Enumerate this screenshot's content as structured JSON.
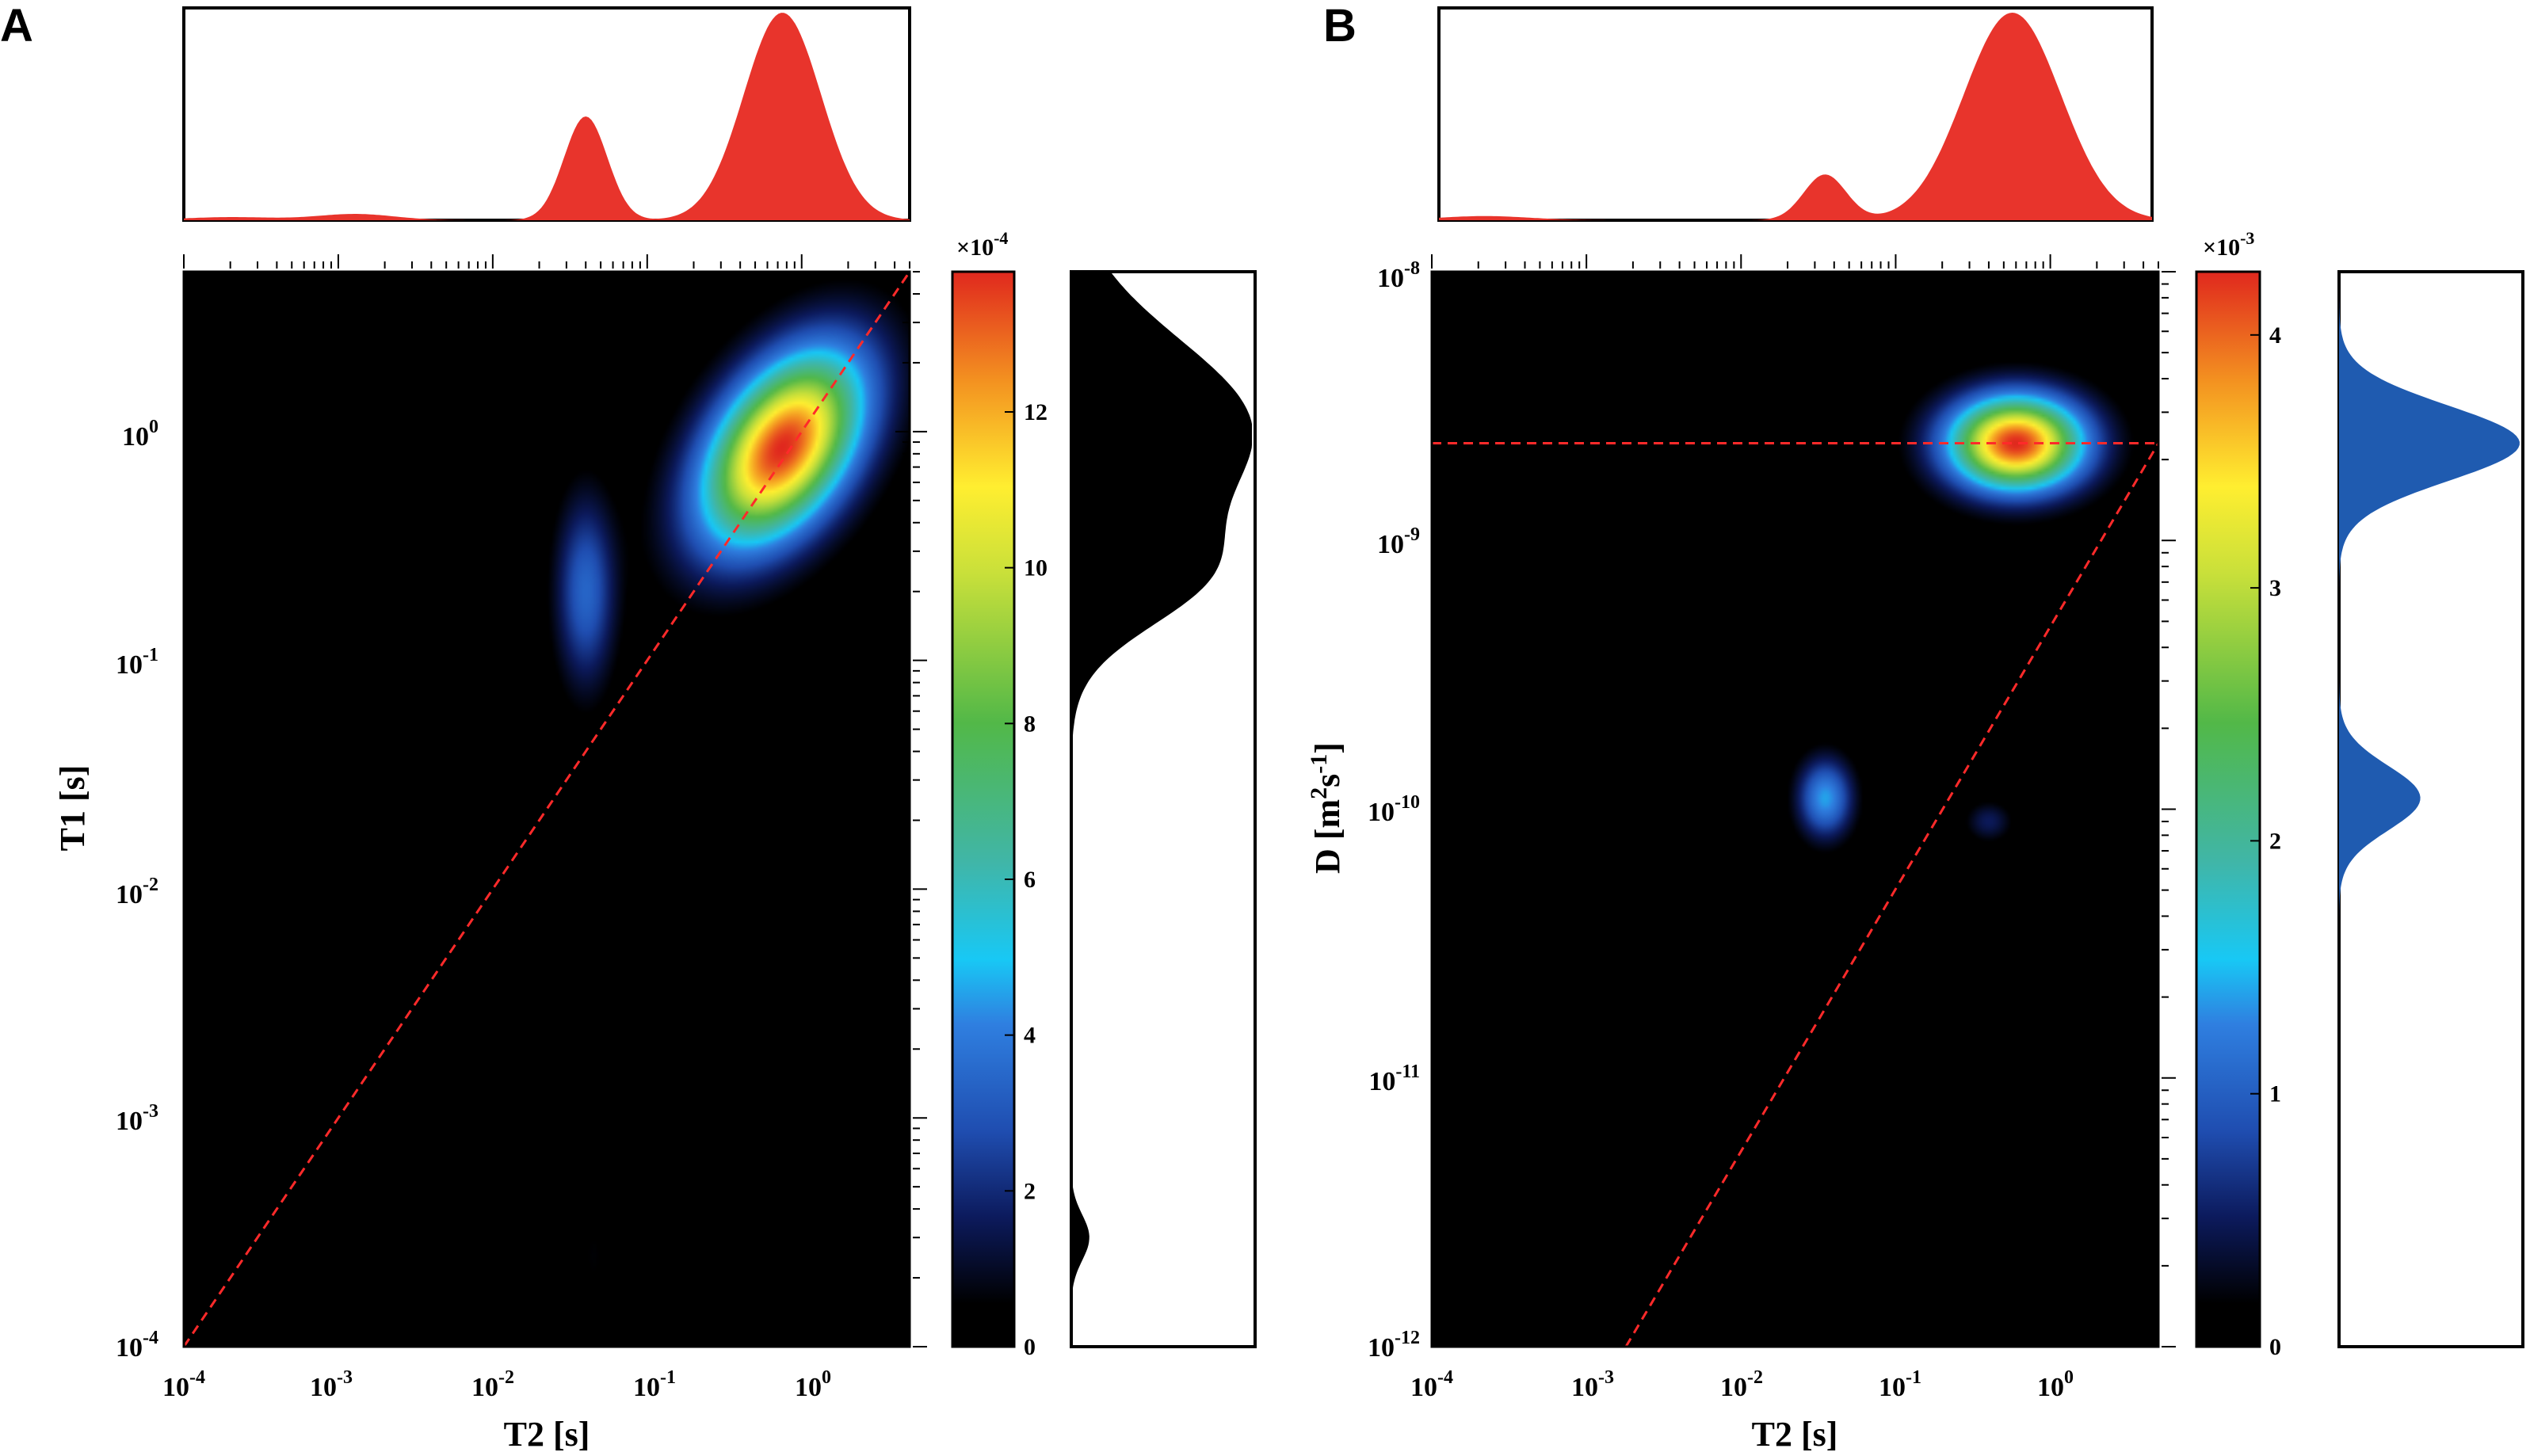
{
  "chart_data": [
    {
      "type": "heatmap",
      "panel": "A",
      "xlabel": "T2 [s]",
      "ylabel": "T1 [s]",
      "x_scale": "log",
      "y_scale": "log",
      "xlim": [
        0.0001,
        5
      ],
      "ylim": [
        0.0001,
        5
      ],
      "x_tick_labels": [
        {
          "value": 0.0001,
          "base": "10",
          "exp": "-4"
        },
        {
          "value": 0.001,
          "base": "10",
          "exp": "-3"
        },
        {
          "value": 0.01,
          "base": "10",
          "exp": "-2"
        },
        {
          "value": 0.1,
          "base": "10",
          "exp": "-1"
        },
        {
          "value": 1,
          "base": "10",
          "exp": "0"
        }
      ],
      "y_tick_labels": [
        {
          "value": 0.0001,
          "base": "10",
          "exp": "-4"
        },
        {
          "value": 0.001,
          "base": "10",
          "exp": "-3"
        },
        {
          "value": 0.01,
          "base": "10",
          "exp": "-2"
        },
        {
          "value": 0.1,
          "base": "10",
          "exp": "-1"
        },
        {
          "value": 1,
          "base": "10",
          "exp": "0"
        }
      ],
      "colorbar": {
        "multiplier": "×10",
        "multiplier_exp": "-4",
        "min": 0,
        "max": 13.8,
        "ticks": [
          "0",
          "2",
          "4",
          "6",
          "8",
          "10",
          "12"
        ]
      },
      "reference_lines": [
        {
          "name": "diagonal T1=T2",
          "from": [
            0.0001,
            0.0001
          ],
          "to": [
            5,
            5
          ]
        }
      ],
      "peaks": [
        {
          "x": 0.75,
          "y": 0.85,
          "amplitude": 13.8,
          "sx": 0.32,
          "sy": 0.26,
          "tilt": -0.45
        },
        {
          "x": 0.04,
          "y": 0.2,
          "amplitude": 3.4,
          "sx": 0.13,
          "sy": 0.28,
          "tilt": 0
        },
        {
          "x": 0.045,
          "y": 0.00025,
          "amplitude": 0.6,
          "sx": 0.1,
          "sy": 0.2,
          "tilt": 0
        }
      ],
      "top_projection": {
        "fill": "#e8342c",
        "peaks": [
          {
            "x": 0.75,
            "height": 1.0,
            "width": 0.25
          },
          {
            "x": 0.04,
            "height": 0.5,
            "width": 0.14
          },
          {
            "x": 0.0013,
            "height": 0.03,
            "width": 0.25
          },
          {
            "x": 0.0002,
            "height": 0.015,
            "width": 0.3
          }
        ]
      },
      "side_projection": {
        "fill": "#000000",
        "peaks": [
          {
            "y": 1.0,
            "height": 1.0,
            "width": 0.4
          },
          {
            "y": 0.22,
            "height": 0.5,
            "width": 0.22
          },
          {
            "y": 0.0003,
            "height": 0.1,
            "width": 0.1
          }
        ]
      }
    },
    {
      "type": "heatmap",
      "panel": "B",
      "xlabel": "T2 [s]",
      "ylabel_main": "D [m",
      "ylabel_sup1": "2",
      "ylabel_mid": "s",
      "ylabel_sup2": "-1",
      "ylabel_end": "]",
      "x_scale": "log",
      "y_scale": "log",
      "xlim": [
        0.0001,
        5
      ],
      "ylim": [
        1e-12,
        1e-08
      ],
      "x_tick_labels": [
        {
          "value": 0.0001,
          "base": "10",
          "exp": "-4"
        },
        {
          "value": 0.001,
          "base": "10",
          "exp": "-3"
        },
        {
          "value": 0.01,
          "base": "10",
          "exp": "-2"
        },
        {
          "value": 0.1,
          "base": "10",
          "exp": "-1"
        },
        {
          "value": 1,
          "base": "10",
          "exp": "0"
        }
      ],
      "y_tick_labels": [
        {
          "value": 1e-12,
          "base": "10",
          "exp": "-12"
        },
        {
          "value": 1e-11,
          "base": "10",
          "exp": "-11"
        },
        {
          "value": 1e-10,
          "base": "10",
          "exp": "-10"
        },
        {
          "value": 1e-09,
          "base": "10",
          "exp": "-9"
        },
        {
          "value": 1e-08,
          "base": "10",
          "exp": "-8"
        }
      ],
      "colorbar": {
        "multiplier": "×10",
        "multiplier_exp": "-3",
        "min": 0,
        "max": 4.25,
        "ticks": [
          "0",
          "1",
          "2",
          "3",
          "4"
        ]
      },
      "reference_lines": [
        {
          "name": "free water diffusion",
          "from": [
            0.0001,
            2.3e-09
          ],
          "to": [
            5,
            2.3e-09
          ]
        },
        {
          "name": "surface relaxation line",
          "from": [
            0.0018,
            1e-12
          ],
          "to": [
            5,
            2.3e-09
          ]
        }
      ],
      "peaks": [
        {
          "x": 0.6,
          "y": 2.3e-09,
          "amplitude": 4.25,
          "sx": 0.3,
          "sy": 0.12,
          "tilt": 0
        },
        {
          "x": 0.035,
          "y": 1.1e-10,
          "amplitude": 1.4,
          "sx": 0.12,
          "sy": 0.1,
          "tilt": 0
        },
        {
          "x": 0.4,
          "y": 9e-11,
          "amplitude": 0.5,
          "sx": 0.1,
          "sy": 0.05,
          "tilt": 0
        }
      ],
      "top_projection": {
        "fill": "#e8342c",
        "peaks": [
          {
            "x": 0.6,
            "height": 1.0,
            "width": 0.32
          },
          {
            "x": 0.035,
            "height": 0.22,
            "width": 0.14
          },
          {
            "x": 0.0002,
            "height": 0.02,
            "width": 0.3
          }
        ]
      },
      "side_projection": {
        "fill": "#1f5bb0",
        "peaks": [
          {
            "y": 2.3e-09,
            "height": 1.0,
            "width": 0.14
          },
          {
            "y": 1.1e-10,
            "height": 0.45,
            "width": 0.12
          }
        ]
      }
    }
  ]
}
